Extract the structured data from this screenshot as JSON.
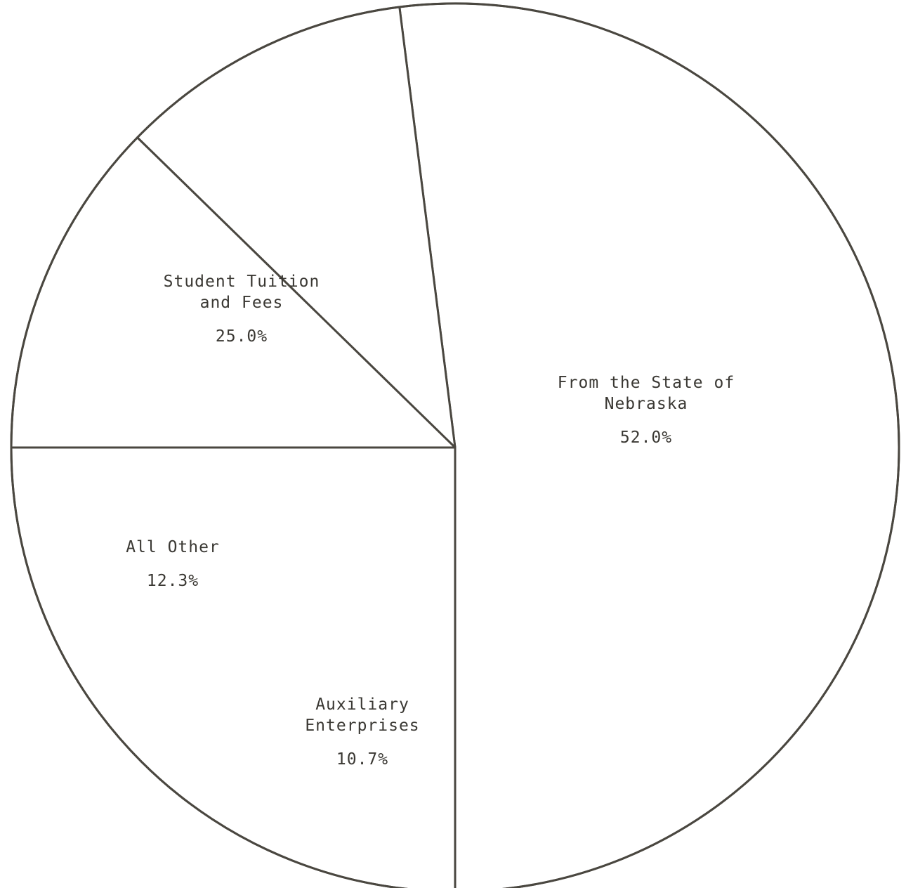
{
  "chart_data": {
    "type": "pie",
    "title": "",
    "slices": [
      {
        "label_lines": [
          "From the State of",
          "Nebraska"
        ],
        "value": 52.0,
        "value_label": "52.0%"
      },
      {
        "label_lines": [
          "Auxiliary",
          "Enterprises"
        ],
        "value": 10.7,
        "value_label": "10.7%"
      },
      {
        "label_lines": [
          "All Other"
        ],
        "value": 12.3,
        "value_label": "12.3%"
      },
      {
        "label_lines": [
          "Student Tuition",
          "and Fees"
        ],
        "value": 25.0,
        "value_label": "25.0%"
      }
    ],
    "colors": {
      "fill": "#ffffff",
      "stroke": "#4a4740",
      "text": "#3a3833"
    },
    "legend": "none",
    "labels_inside_slices": true
  }
}
